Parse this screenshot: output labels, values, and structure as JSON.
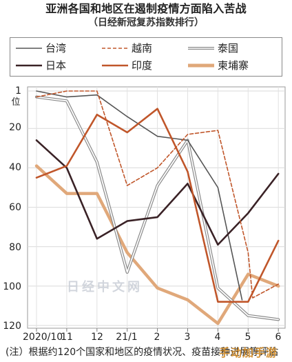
{
  "title": "亚洲各国和地区在遏制疫情方面陷入苦战",
  "subtitle": "（日经新冠复苏指数排行）",
  "footnote": "(注）根据约120个国家和地区的疫情状况、疫苗接种进展等评估",
  "watermark": "日经中文网",
  "site_mark": "手动加手游",
  "unit_label": "位",
  "chart_data": {
    "type": "line",
    "categories": [
      "2020/10",
      "11",
      "12",
      "21/1",
      "2",
      "3",
      "4",
      "5",
      "6"
    ],
    "y_ticks": [
      "1",
      "20",
      "40",
      "60",
      "80",
      "100",
      "120"
    ],
    "y_tick_values": [
      1,
      20,
      40,
      60,
      80,
      100,
      120
    ],
    "ylim": [
      1,
      120
    ],
    "y_inverted": true,
    "grid": true,
    "legend_position": "top",
    "series": [
      {
        "name": "台湾",
        "color": "#555555",
        "style": "solid",
        "x": [
          0,
          1,
          2,
          3,
          4,
          5,
          6,
          6.8
        ],
        "values": [
          1,
          4,
          3,
          14,
          24,
          26,
          50,
          107
        ]
      },
      {
        "name": "越南",
        "color": "#c0562a",
        "style": "dashed",
        "x": [
          0,
          1,
          2,
          3,
          4,
          5,
          6,
          7,
          7.15,
          8
        ],
        "values": [
          4,
          1,
          1,
          49,
          40,
          23,
          21,
          83,
          106,
          99
        ]
      },
      {
        "name": "泰国",
        "color": "#8a8a8a",
        "style": "double",
        "x": [
          0,
          1,
          2,
          3,
          4,
          5,
          6,
          7,
          8
        ],
        "values": [
          4,
          6,
          37,
          93,
          49,
          26,
          101,
          115,
          117
        ]
      },
      {
        "name": "日本",
        "color": "#3a2226",
        "style": "solid",
        "x": [
          0,
          1,
          2,
          3,
          4,
          5,
          6,
          7,
          8
        ],
        "values": [
          26,
          40,
          76,
          67,
          65,
          48,
          79,
          63,
          43
        ]
      },
      {
        "name": "印度",
        "color": "#c0562a",
        "style": "solid",
        "x": [
          0,
          1,
          2,
          3,
          4,
          5,
          6,
          7,
          8
        ],
        "values": [
          45,
          39,
          13,
          22,
          10,
          42,
          108,
          108,
          77
        ]
      },
      {
        "name": "柬埔寨",
        "color": "#e0a87a",
        "style": "thick",
        "x": [
          0,
          1,
          2,
          3,
          4,
          5,
          6,
          7,
          8
        ],
        "values": [
          39,
          53,
          53,
          83,
          101,
          107,
          119,
          94,
          100
        ]
      }
    ]
  }
}
